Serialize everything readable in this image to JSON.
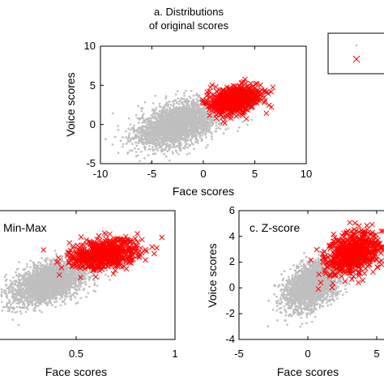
{
  "chart_data": [
    {
      "type": "scatter",
      "title_lines": [
        "a. Distributions",
        "of original scores"
      ],
      "xlabel": "Face scores",
      "ylabel": "Voice scores",
      "xlim": [
        -10,
        10
      ],
      "ylim": [
        -5,
        10
      ],
      "xticks": [
        "-10",
        "-5",
        "0",
        "5",
        "10"
      ],
      "yticks": [
        "-5",
        "0",
        "5",
        "10"
      ],
      "series": [
        {
          "color": "#bfbfbf",
          "marker": "dot",
          "center": [
            -2.5,
            0
          ],
          "spread": [
            2.0,
            1.5
          ],
          "tilt": 0.45
        },
        {
          "color": "#ff0000",
          "marker": "x",
          "center": [
            3.0,
            3.2
          ],
          "spread": [
            1.3,
            0.85
          ],
          "tilt": 0.35
        }
      ]
    },
    {
      "type": "scatter",
      "annotation": "Min-Max",
      "xlabel": "Face scores",
      "ylabel": "",
      "xlim": [
        0,
        1
      ],
      "ylim": [
        0,
        1
      ],
      "xticks": [
        "0.5",
        "1"
      ],
      "yticks": [],
      "series": [
        {
          "color": "#bfbfbf",
          "marker": "dot",
          "center": [
            0.36,
            0.44
          ],
          "spread": [
            0.095,
            0.085
          ],
          "tilt": 0.45
        },
        {
          "color": "#ff0000",
          "marker": "x",
          "center": [
            0.64,
            0.66
          ],
          "spread": [
            0.09,
            0.06
          ],
          "tilt": 0.35
        }
      ]
    },
    {
      "type": "scatter",
      "annotation": "c. Z-score",
      "xlabel": "Face scores",
      "ylabel": "Voice scores",
      "xlim": [
        -5,
        5
      ],
      "ylim": [
        -4,
        6
      ],
      "xticks": [
        "-5",
        "0",
        "5"
      ],
      "yticks": [
        "-4",
        "-2",
        "0",
        "2",
        "4",
        "6"
      ],
      "series": [
        {
          "color": "#bfbfbf",
          "marker": "dot",
          "center": [
            0.3,
            0.2
          ],
          "spread": [
            1.0,
            1.0
          ],
          "tilt": 0.45
        },
        {
          "color": "#ff0000",
          "marker": "x",
          "center": [
            3.4,
            2.7
          ],
          "spread": [
            1.0,
            0.8
          ],
          "tilt": 0.35
        }
      ]
    }
  ],
  "legend": {
    "entries": [
      {
        "color": "#bfbfbf",
        "marker": "dot"
      },
      {
        "color": "#ff0000",
        "marker": "x"
      }
    ]
  }
}
